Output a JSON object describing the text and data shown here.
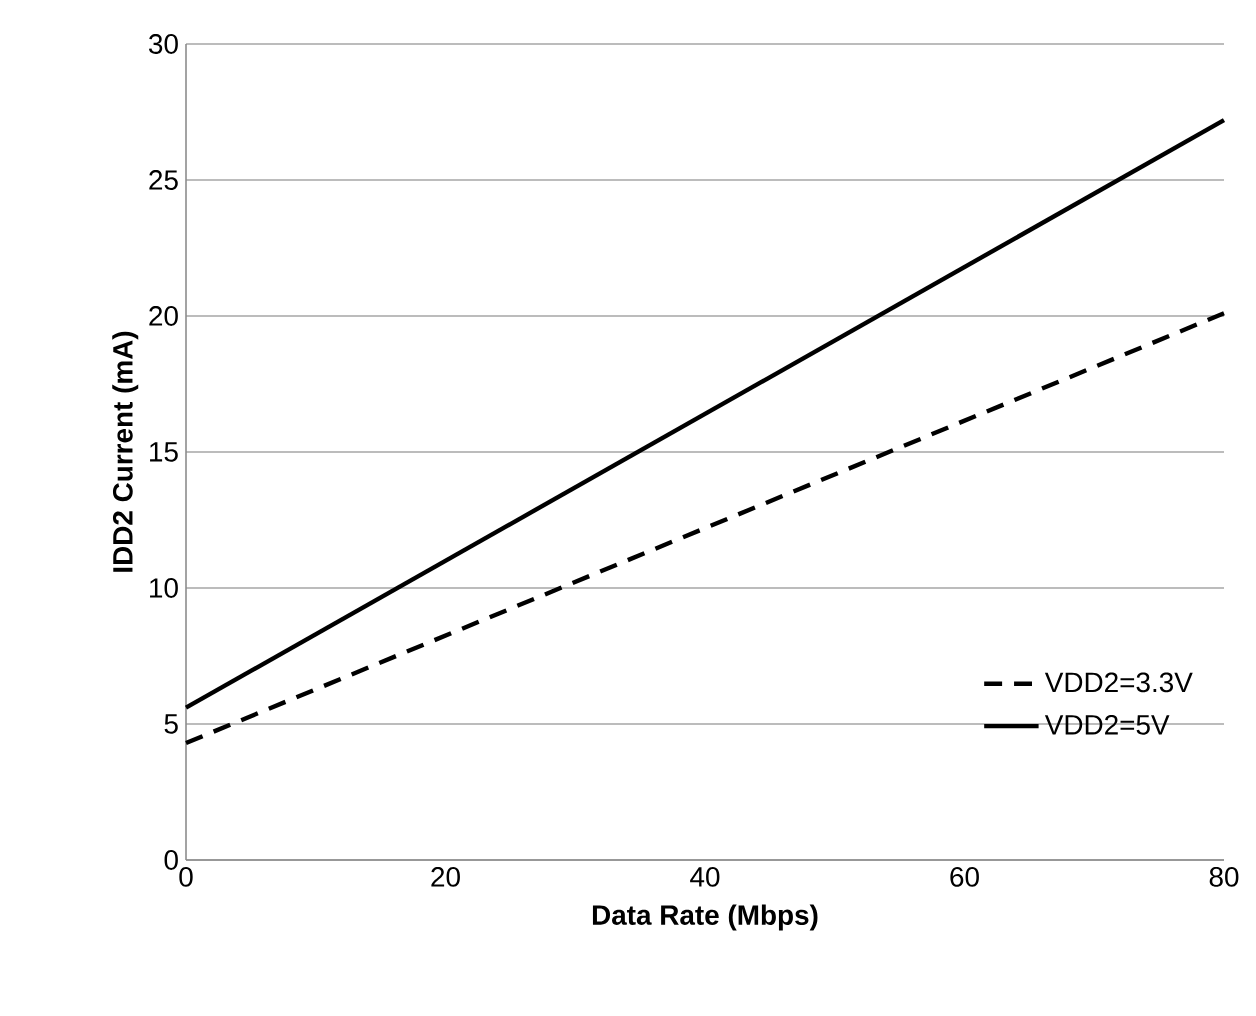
{
  "chart_data": {
    "type": "line",
    "xlabel": "Data Rate (Mbps)",
    "ylabel": "IDD2 Current (mA)",
    "x": [
      0,
      80
    ],
    "series": [
      {
        "name": "VDD2=3.3V",
        "color": "#000000",
        "line_style": "dashed",
        "values": [
          4.3,
          20.1
        ]
      },
      {
        "name": "VDD2=5V",
        "color": "#000000",
        "line_style": "solid",
        "values": [
          5.6,
          27.2
        ]
      }
    ],
    "xlim": [
      0,
      80
    ],
    "ylim": [
      0,
      30
    ],
    "xticks": [
      0,
      20,
      40,
      60,
      80
    ],
    "yticks": [
      0,
      5,
      10,
      15,
      20,
      25,
      30
    ],
    "grid": "y",
    "legend": "right",
    "marker": "none"
  }
}
